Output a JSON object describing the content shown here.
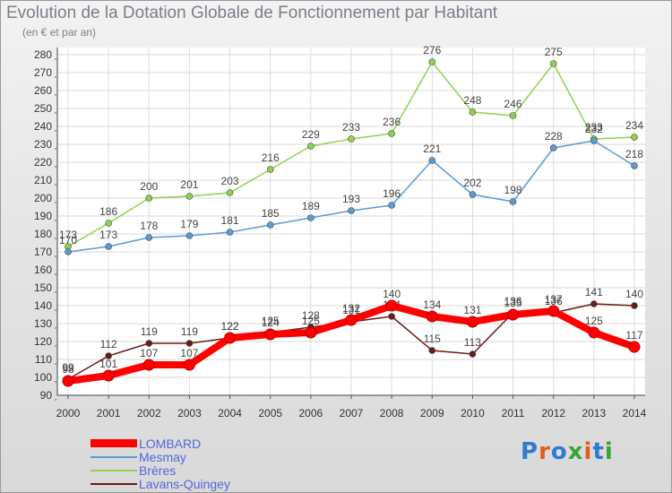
{
  "header": {
    "title": "Evolution de la Dotation Globale de Fonctionnement par Habitant",
    "subtitle": "(en € et par an)"
  },
  "logo": {
    "text": "Proxiti",
    "colors": [
      "#2e7bd6",
      "#e65c1c",
      "#2e7bd6",
      "#3aa33a",
      "#e65c1c",
      "#2e7bd6",
      "#3aa33a"
    ]
  },
  "chart_data": {
    "type": "line",
    "x": [
      "2000",
      "2001",
      "2002",
      "2003",
      "2004",
      "2005",
      "2006",
      "2007",
      "2008",
      "2009",
      "2010",
      "2011",
      "2012",
      "2013",
      "2014"
    ],
    "ylim": [
      90,
      280
    ],
    "yticks": [
      90,
      100,
      110,
      120,
      130,
      140,
      150,
      160,
      170,
      180,
      190,
      200,
      210,
      220,
      230,
      240,
      250,
      260,
      270,
      280
    ],
    "grid": true,
    "legend_position": "bottom-left",
    "series": [
      {
        "name": "LOMBARD",
        "color": "#ff0000",
        "values": [
          98,
          101,
          107,
          107,
          122,
          124,
          125,
          132,
          140,
          134,
          131,
          135,
          137,
          125,
          117
        ]
      },
      {
        "name": "Mesmay",
        "color": "#5a9bd4",
        "values": [
          170,
          173,
          178,
          179,
          181,
          185,
          189,
          193,
          196,
          221,
          202,
          198,
          228,
          232,
          218
        ]
      },
      {
        "name": "Brères",
        "color": "#8fd14f",
        "values": [
          173,
          186,
          200,
          201,
          203,
          216,
          229,
          233,
          236,
          276,
          248,
          246,
          275,
          233,
          234
        ]
      },
      {
        "name": "Lavans-Quingey",
        "color": "#6b1a1a",
        "values": [
          99,
          112,
          119,
          119,
          122,
          125,
          128,
          131,
          134,
          115,
          113,
          136,
          136,
          141,
          140
        ]
      }
    ]
  }
}
